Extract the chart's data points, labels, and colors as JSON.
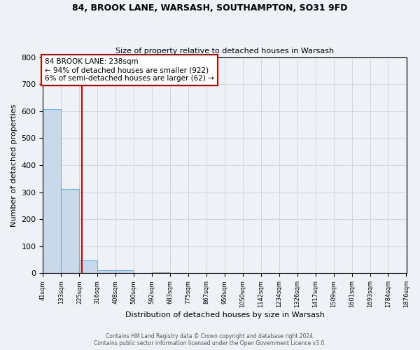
{
  "title1": "84, BROOK LANE, WARSASH, SOUTHAMPTON, SO31 9FD",
  "title2": "Size of property relative to detached houses in Warsash",
  "xlabel": "Distribution of detached houses by size in Warsash",
  "ylabel": "Number of detached properties",
  "bar_edges": [
    41,
    133,
    225,
    316,
    408,
    500,
    592,
    683,
    775,
    867,
    959,
    1050,
    1142,
    1234,
    1326,
    1417,
    1509,
    1601,
    1693,
    1784,
    1876
  ],
  "bar_heights": [
    607,
    311,
    47,
    11,
    11,
    0,
    4,
    0,
    0,
    1,
    0,
    0,
    0,
    0,
    0,
    0,
    0,
    0,
    0,
    0
  ],
  "bar_color": "#c9d9e9",
  "bar_edge_color": "#7ab0d4",
  "property_line_x": 238,
  "property_line_color": "#cc0000",
  "annotation_text": "84 BROOK LANE: 238sqm\n← 94% of detached houses are smaller (922)\n6% of semi-detached houses are larger (62) →",
  "annotation_box_color": "#cc0000",
  "ylim": [
    0,
    800
  ],
  "yticks": [
    0,
    100,
    200,
    300,
    400,
    500,
    600,
    700,
    800
  ],
  "footer1": "Contains HM Land Registry data © Crown copyright and database right 2024.",
  "footer2": "Contains public sector information licensed under the Open Government Licence v3.0.",
  "tick_labels": [
    "41sqm",
    "133sqm",
    "225sqm",
    "316sqm",
    "408sqm",
    "500sqm",
    "592sqm",
    "683sqm",
    "775sqm",
    "867sqm",
    "959sqm",
    "1050sqm",
    "1142sqm",
    "1234sqm",
    "1326sqm",
    "1417sqm",
    "1509sqm",
    "1601sqm",
    "1693sqm",
    "1784sqm",
    "1876sqm"
  ],
  "grid_color": "#cccccc",
  "background_color": "#eef2f7",
  "ax_background_color": "#eef2f7"
}
